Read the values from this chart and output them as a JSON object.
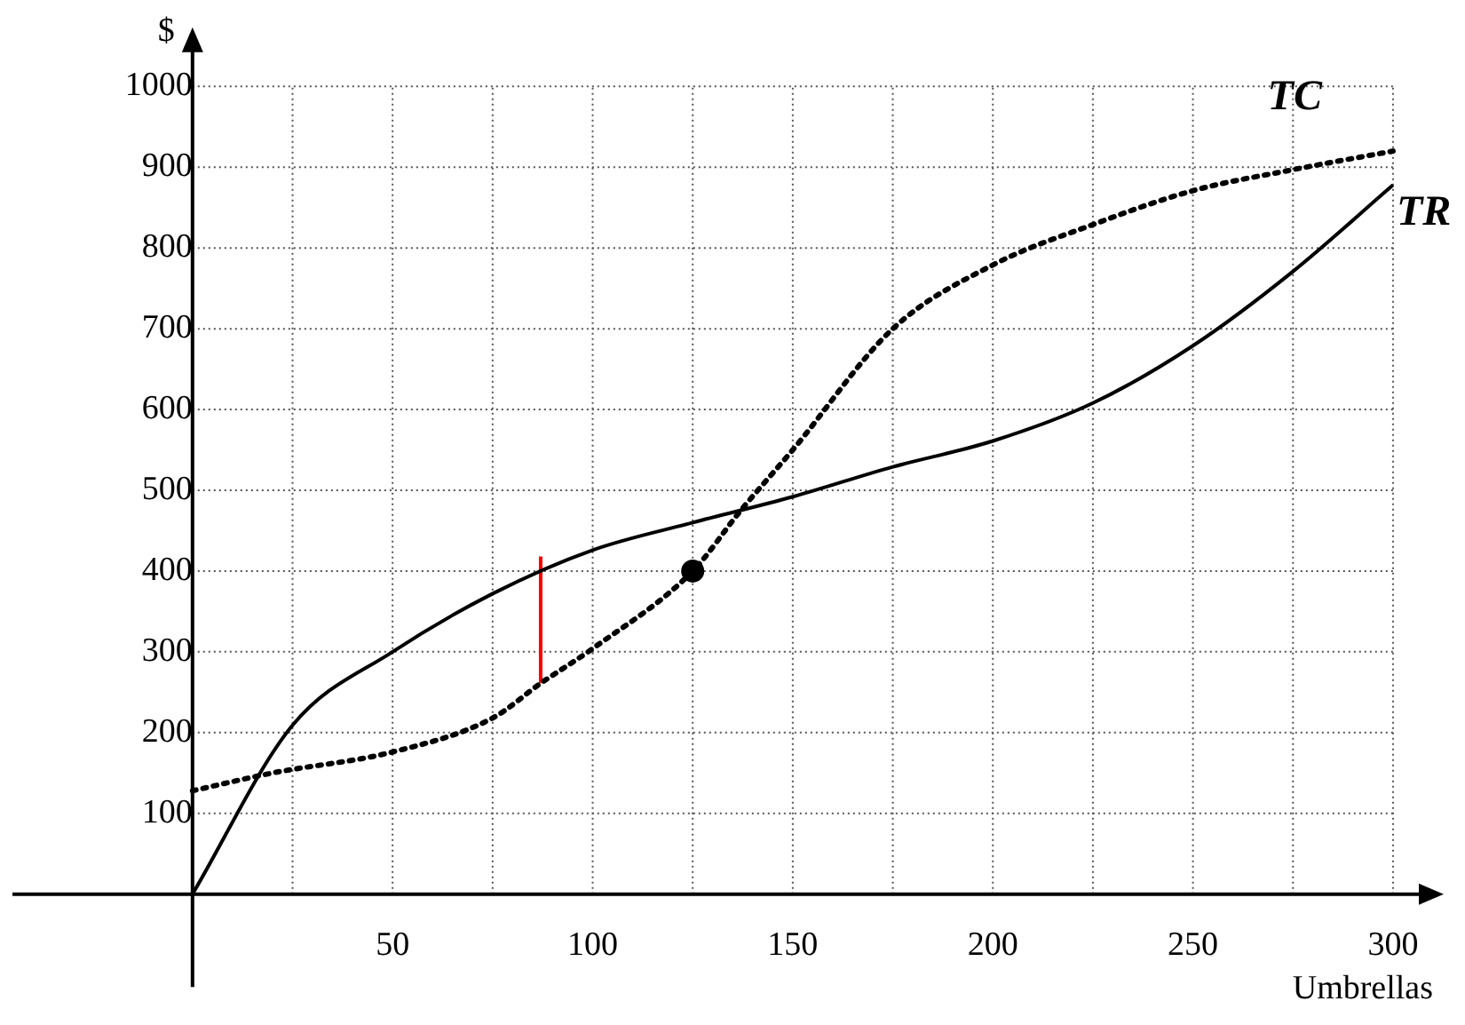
{
  "chart_data": {
    "type": "line",
    "xlabel": "Umbrellas",
    "ylabel": "$",
    "xlim": [
      -45,
      310
    ],
    "ylim": [
      -115,
      1060
    ],
    "xticks": [
      {
        "value": 25,
        "label": null
      },
      50,
      {
        "value": 75,
        "label": null
      },
      100,
      {
        "value": 125,
        "label": null
      },
      150,
      {
        "value": 175,
        "label": null
      },
      200,
      {
        "value": 225,
        "label": null
      },
      250,
      {
        "value": 275,
        "label": null
      },
      300
    ],
    "yticks": [
      100,
      200,
      300,
      400,
      500,
      600,
      700,
      800,
      900,
      1000
    ],
    "grid": true,
    "marker": "none",
    "series": [
      {
        "name": "TC",
        "color": "#000000",
        "line_style": "dotted",
        "x": [
          0,
          20,
          50,
          75,
          87,
          100,
          125,
          137,
          150,
          175,
          200,
          225,
          250,
          275,
          300
        ],
        "values": [
          128,
          150,
          176,
          218,
          261,
          304,
          400,
          475,
          550,
          700,
          779,
          829,
          871,
          897,
          920
        ]
      },
      {
        "name": "TR",
        "color": "#000000",
        "line_style": "solid",
        "x": [
          0,
          25,
          50,
          75,
          100,
          125,
          150,
          175,
          200,
          225,
          250,
          275,
          300
        ],
        "values": [
          0,
          209,
          300,
          372,
          426,
          460,
          492,
          529,
          561,
          608,
          679,
          771,
          878
        ]
      },
      {
        "color": "#ff0000",
        "line_style": "solid",
        "x": [
          87,
          87
        ],
        "values": [
          261,
          418
        ]
      },
      {
        "type": "scatter",
        "color": "#000000",
        "marker": "circle",
        "x": [
          125
        ],
        "values": [
          400
        ]
      }
    ]
  }
}
